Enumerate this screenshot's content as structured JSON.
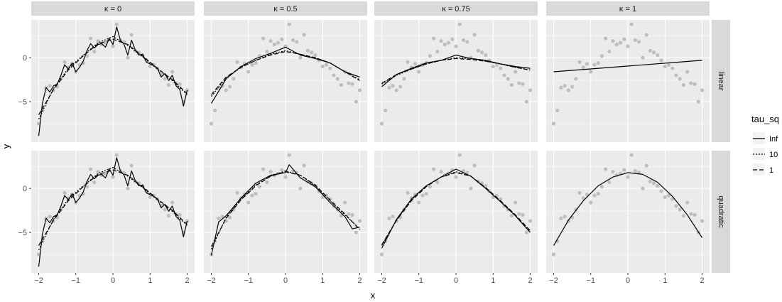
{
  "chart_data": {
    "type": "line",
    "title": "",
    "xlabel": "x",
    "ylabel": "y",
    "xlim": [
      -2.2,
      2.2
    ],
    "ylim": [
      -9.6,
      4.3
    ],
    "xticks": [
      -2,
      -1,
      0,
      1,
      2
    ],
    "xtick_labels": [
      "−2",
      "−1",
      "0",
      "1",
      "2"
    ],
    "yticks": [
      -5,
      0
    ],
    "ytick_labels": [
      "−5",
      "0"
    ],
    "grid": true,
    "facet_columns": [
      "κ = 0",
      "κ = 0.5",
      "κ = 0.75",
      "κ = 1"
    ],
    "facet_rows": [
      "linear",
      "quadratic"
    ],
    "legend": {
      "title": "tau_sq",
      "position": "right",
      "entries": [
        {
          "label": "Inf",
          "linetype": "solid"
        },
        {
          "label": "10",
          "linetype": "dotted"
        },
        {
          "label": "1",
          "linetype": "dashed"
        }
      ]
    },
    "colors": {
      "panel_background": "#ebebeb",
      "grid": "#ffffff",
      "strip_background": "#d9d9d9",
      "points": "#bebebe",
      "lines": "#000000"
    },
    "points": {
      "x": [
        -2.0,
        -1.9,
        -1.8,
        -1.7,
        -1.6,
        -1.5,
        -1.4,
        -1.3,
        -1.2,
        -1.1,
        -1.0,
        -0.9,
        -0.8,
        -0.7,
        -0.6,
        -0.5,
        -0.4,
        -0.3,
        -0.2,
        -0.1,
        0.0,
        0.1,
        0.2,
        0.3,
        0.4,
        0.5,
        0.6,
        0.7,
        0.8,
        0.9,
        1.0,
        1.1,
        1.2,
        1.3,
        1.4,
        1.5,
        1.6,
        1.7,
        1.8,
        1.9,
        2.0
      ],
      "y": [
        -7.5,
        -6.0,
        -3.4,
        -3.2,
        -3.7,
        -3.3,
        -2.4,
        -0.5,
        -1.1,
        -0.7,
        -1.6,
        -0.8,
        -0.6,
        0.2,
        2.2,
        0.7,
        1.9,
        1.5,
        1.7,
        2.1,
        1.3,
        3.8,
        2.0,
        1.8,
        0.0,
        2.6,
        0.8,
        0.6,
        0.3,
        -0.3,
        -1.0,
        -0.8,
        -1.2,
        -2.0,
        -2.4,
        -3.1,
        -1.6,
        -2.9,
        -3.0,
        -5.0,
        -3.7
      ]
    },
    "series": [
      {
        "name": "Inf",
        "facet": "κ = 0 / linear",
        "x": [
          -2.0,
          -1.9,
          -1.8,
          -1.7,
          -1.6,
          -1.5,
          -1.4,
          -1.3,
          -1.2,
          -1.1,
          -1.0,
          -0.9,
          -0.8,
          -0.7,
          -0.6,
          -0.5,
          -0.4,
          -0.3,
          -0.2,
          -0.1,
          0.0,
          0.1,
          0.2,
          0.3,
          0.4,
          0.5,
          0.6,
          0.7,
          0.8,
          0.9,
          1.0,
          1.1,
          1.2,
          1.3,
          1.4,
          1.5,
          1.6,
          1.7,
          1.8,
          1.9,
          2.0
        ],
        "y": [
          -8.9,
          -5.2,
          -3.4,
          -3.9,
          -3.2,
          -3.0,
          -2.0,
          -0.8,
          -1.3,
          -0.6,
          -1.6,
          -1.1,
          -0.4,
          0.8,
          1.6,
          1.1,
          1.5,
          1.6,
          1.2,
          2.2,
          1.5,
          3.5,
          2.0,
          1.5,
          0.3,
          2.0,
          0.9,
          0.3,
          0.4,
          -0.5,
          -0.7,
          -0.9,
          -1.2,
          -2.2,
          -1.8,
          -2.6,
          -2.0,
          -3.2,
          -3.6,
          -5.5,
          -3.7
        ]
      },
      {
        "name": "10",
        "facet": "κ = 0 / linear",
        "x": [
          -2.0,
          -1.6,
          -1.2,
          -0.8,
          -0.4,
          0.0,
          0.4,
          0.8,
          1.2,
          1.6,
          2.0
        ],
        "y": [
          -7.0,
          -3.5,
          -1.2,
          0.3,
          1.7,
          2.4,
          1.4,
          0.1,
          -1.3,
          -2.6,
          -4.2
        ]
      },
      {
        "name": "1",
        "facet": "κ = 0 / linear",
        "x": [
          -2.0,
          -1.6,
          -1.2,
          -0.8,
          -0.4,
          0.0,
          0.4,
          0.8,
          1.2,
          1.6,
          2.0
        ],
        "y": [
          -6.5,
          -3.6,
          -1.4,
          0.2,
          1.6,
          2.1,
          1.5,
          0.2,
          -1.2,
          -2.5,
          -4.1
        ]
      },
      {
        "name": "Inf",
        "facet": "κ = 0.5 / linear",
        "x": [
          -2.0,
          -1.6,
          -1.2,
          -0.8,
          -0.4,
          0.0,
          0.4,
          0.8,
          1.2,
          1.6,
          2.0
        ],
        "y": [
          -5.2,
          -2.4,
          -1.0,
          -0.1,
          0.5,
          1.2,
          0.3,
          -0.1,
          -0.6,
          -1.6,
          -2.2
        ]
      },
      {
        "name": "10",
        "facet": "κ = 0.5 / linear",
        "x": [
          -2.0,
          -1.6,
          -1.2,
          -0.8,
          -0.4,
          0.0,
          0.4,
          0.8,
          1.2,
          1.6,
          2.0
        ],
        "y": [
          -4.4,
          -2.3,
          -1.1,
          -0.3,
          0.4,
          0.8,
          0.4,
          0.0,
          -0.6,
          -1.6,
          -2.5
        ]
      },
      {
        "name": "1",
        "facet": "κ = 0.5 / linear",
        "x": [
          -2.0,
          -1.6,
          -1.2,
          -0.8,
          -0.4,
          0.0,
          0.4,
          0.8,
          1.2,
          1.6,
          2.0
        ],
        "y": [
          -4.2,
          -2.2,
          -1.1,
          -0.3,
          0.3,
          0.7,
          0.4,
          0.0,
          -0.6,
          -1.6,
          -2.6
        ]
      },
      {
        "name": "Inf",
        "facet": "κ = 0.75 / linear",
        "x": [
          -2.0,
          -1.6,
          -1.2,
          -0.8,
          -0.4,
          0.0,
          0.4,
          0.8,
          1.2,
          1.6,
          2.0
        ],
        "y": [
          -3.3,
          -1.9,
          -1.2,
          -0.6,
          -0.3,
          0.3,
          -0.1,
          -0.3,
          -0.7,
          -1.0,
          -1.2
        ]
      },
      {
        "name": "10",
        "facet": "κ = 0.75 / linear",
        "x": [
          -2.0,
          -1.6,
          -1.2,
          -0.8,
          -0.4,
          0.0,
          0.4,
          0.8,
          1.2,
          1.6,
          2.0
        ],
        "y": [
          -3.0,
          -2.0,
          -1.3,
          -0.7,
          -0.3,
          0.0,
          -0.1,
          -0.4,
          -0.7,
          -1.1,
          -1.4
        ]
      },
      {
        "name": "1",
        "facet": "κ = 0.75 / linear",
        "x": [
          -2.0,
          -1.6,
          -1.2,
          -0.8,
          -0.4,
          0.0,
          0.4,
          0.8,
          1.2,
          1.6,
          2.0
        ],
        "y": [
          -2.9,
          -1.9,
          -1.3,
          -0.7,
          -0.3,
          -0.1,
          -0.2,
          -0.4,
          -0.7,
          -1.1,
          -1.4
        ]
      },
      {
        "name": "Inf",
        "facet": "κ = 1 / linear",
        "x": [
          -2.0,
          2.0
        ],
        "y": [
          -1.6,
          -0.3
        ]
      },
      {
        "name": "Inf",
        "facet": "κ = 0 / quadratic",
        "x": [
          -2.0,
          -1.9,
          -1.8,
          -1.7,
          -1.6,
          -1.5,
          -1.4,
          -1.3,
          -1.2,
          -1.1,
          -1.0,
          -0.9,
          -0.8,
          -0.7,
          -0.6,
          -0.5,
          -0.4,
          -0.3,
          -0.2,
          -0.1,
          0.0,
          0.1,
          0.2,
          0.3,
          0.4,
          0.5,
          0.6,
          0.7,
          0.8,
          0.9,
          1.0,
          1.1,
          1.2,
          1.3,
          1.4,
          1.5,
          1.6,
          1.7,
          1.8,
          1.9,
          2.0
        ],
        "y": [
          -8.9,
          -5.2,
          -3.4,
          -3.9,
          -3.2,
          -3.0,
          -2.0,
          -0.8,
          -1.3,
          -0.6,
          -1.6,
          -1.1,
          -0.4,
          0.8,
          1.6,
          1.1,
          1.5,
          1.6,
          1.2,
          2.2,
          1.5,
          3.5,
          2.0,
          1.5,
          0.3,
          2.0,
          0.9,
          0.3,
          0.4,
          -0.5,
          -0.7,
          -0.9,
          -1.2,
          -2.2,
          -1.8,
          -2.6,
          -2.0,
          -3.2,
          -3.6,
          -5.5,
          -3.7
        ]
      },
      {
        "name": "10",
        "facet": "κ = 0 / quadratic",
        "x": [
          -2.0,
          -1.6,
          -1.2,
          -0.8,
          -0.4,
          0.0,
          0.4,
          0.8,
          1.2,
          1.6,
          2.0
        ],
        "y": [
          -7.0,
          -3.5,
          -1.2,
          0.3,
          1.7,
          2.4,
          1.4,
          0.1,
          -1.3,
          -2.6,
          -4.2
        ]
      },
      {
        "name": "1",
        "facet": "κ = 0 / quadratic",
        "x": [
          -2.0,
          -1.6,
          -1.2,
          -0.8,
          -0.4,
          0.0,
          0.4,
          0.8,
          1.2,
          1.6,
          2.0
        ],
        "y": [
          -6.5,
          -3.6,
          -1.4,
          0.2,
          1.6,
          2.1,
          1.5,
          0.2,
          -1.2,
          -2.5,
          -4.1
        ]
      },
      {
        "name": "Inf",
        "facet": "κ = 0.5 / quadratic",
        "x": [
          -2.0,
          -1.8,
          -1.6,
          -1.2,
          -0.8,
          -0.4,
          0.0,
          0.1,
          0.4,
          0.8,
          1.2,
          1.6,
          1.8,
          2.0
        ],
        "y": [
          -7.6,
          -3.8,
          -3.1,
          -1.1,
          0.6,
          1.5,
          1.8,
          2.7,
          1.2,
          0.2,
          -1.6,
          -3.2,
          -4.6,
          -4.4
        ]
      },
      {
        "name": "10",
        "facet": "κ = 0.5 / quadratic",
        "x": [
          -2.0,
          -1.6,
          -1.2,
          -0.8,
          -0.4,
          0.0,
          0.4,
          0.8,
          1.2,
          1.6,
          2.0
        ],
        "y": [
          -6.9,
          -3.3,
          -1.2,
          0.4,
          1.4,
          2.0,
          1.5,
          0.3,
          -1.4,
          -3.0,
          -4.6
        ]
      },
      {
        "name": "1",
        "facet": "κ = 0.5 / quadratic",
        "x": [
          -2.0,
          -1.6,
          -1.2,
          -0.8,
          -0.4,
          0.0,
          0.4,
          0.8,
          1.2,
          1.6,
          2.0
        ],
        "y": [
          -6.6,
          -3.4,
          -1.3,
          0.3,
          1.4,
          1.9,
          1.5,
          0.4,
          -1.3,
          -2.9,
          -4.7
        ]
      },
      {
        "name": "Inf",
        "facet": "κ = 0.75 / quadratic",
        "x": [
          -2.0,
          -1.6,
          -1.2,
          -0.8,
          -0.4,
          0.0,
          0.4,
          0.8,
          1.2,
          1.6,
          2.0
        ],
        "y": [
          -6.8,
          -3.5,
          -1.2,
          0.3,
          1.3,
          2.2,
          1.4,
          0.0,
          -1.5,
          -3.1,
          -5.0
        ]
      },
      {
        "name": "10",
        "facet": "κ = 0.75 / quadratic",
        "x": [
          -2.0,
          -1.6,
          -1.2,
          -0.8,
          -0.4,
          0.0,
          0.4,
          0.8,
          1.2,
          1.6,
          2.0
        ],
        "y": [
          -6.5,
          -3.6,
          -1.3,
          0.3,
          1.3,
          1.9,
          1.4,
          0.0,
          -1.5,
          -3.1,
          -4.9
        ]
      },
      {
        "name": "1",
        "facet": "κ = 0.75 / quadratic",
        "x": [
          -2.0,
          -1.6,
          -1.2,
          -0.8,
          -0.4,
          0.0,
          0.4,
          0.8,
          1.2,
          1.6,
          2.0
        ],
        "y": [
          -6.4,
          -3.6,
          -1.4,
          0.2,
          1.3,
          1.8,
          1.4,
          0.1,
          -1.4,
          -3.0,
          -4.8
        ]
      },
      {
        "name": "Inf",
        "facet": "κ = 1 / quadratic",
        "x": [
          -2.0,
          -1.6,
          -1.2,
          -0.8,
          -0.4,
          0.0,
          0.4,
          0.8,
          1.2,
          1.6,
          2.0
        ],
        "y": [
          -6.5,
          -3.6,
          -1.4,
          0.3,
          1.3,
          1.8,
          1.6,
          0.7,
          -0.9,
          -3.0,
          -5.6
        ]
      }
    ]
  }
}
